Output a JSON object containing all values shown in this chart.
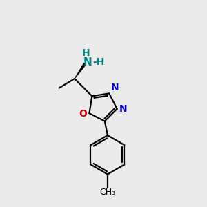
{
  "bg_color": "#ebebeb",
  "bond_color": "#000000",
  "N_color": "#0000cc",
  "O_color": "#cc0000",
  "NH2_N_color": "#008080",
  "NH2_H_color": "#008080",
  "label_fontsize": 10,
  "small_fontsize": 9,
  "figsize": [
    3.0,
    3.0
  ],
  "dpi": 100,
  "xlim": [
    0,
    10
  ],
  "ylim": [
    0,
    10
  ]
}
